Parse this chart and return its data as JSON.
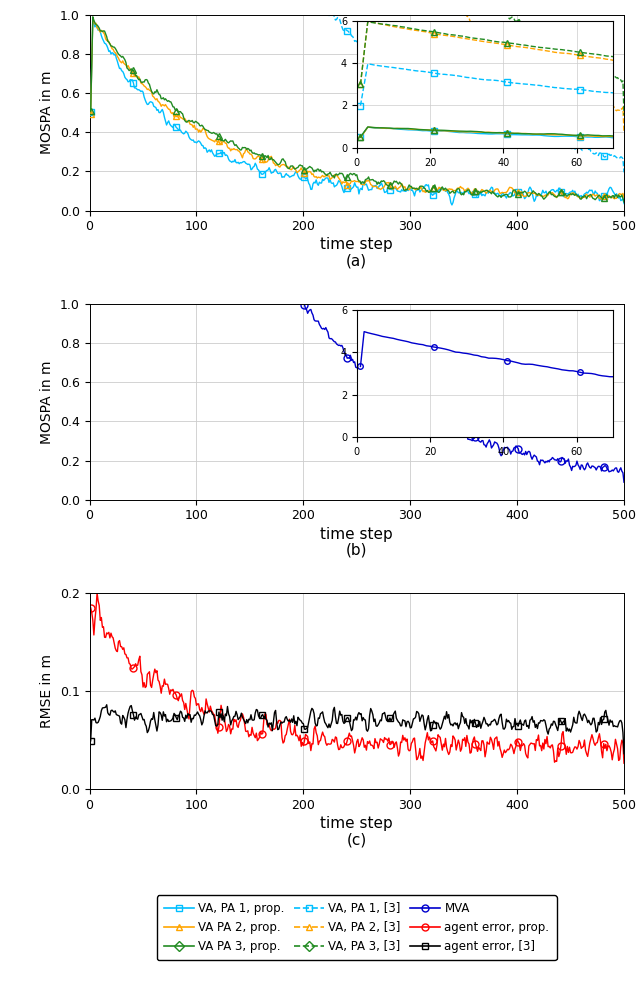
{
  "colors": {
    "cyan": "#00BFFF",
    "orange": "#FFA500",
    "green": "#228B22",
    "blue": "#0000CD",
    "red": "#FF0000",
    "black": "#000000"
  },
  "xlabel": "time step",
  "ylabel_mospa": "MOSPA in m",
  "ylabel_rmse": "RMSE in m",
  "subplot_labels": [
    "(a)",
    "(b)",
    "(c)"
  ],
  "legend_labels": [
    "VA, PA 1, prop.",
    "VA PA 2, prop.",
    "VA PA 3, prop.",
    "VA, PA 1, [3]",
    "VA, PA 2, [3]",
    "VA, PA 3, [3]",
    "MVA",
    "agent error, prop.",
    "agent error, [3]"
  ]
}
